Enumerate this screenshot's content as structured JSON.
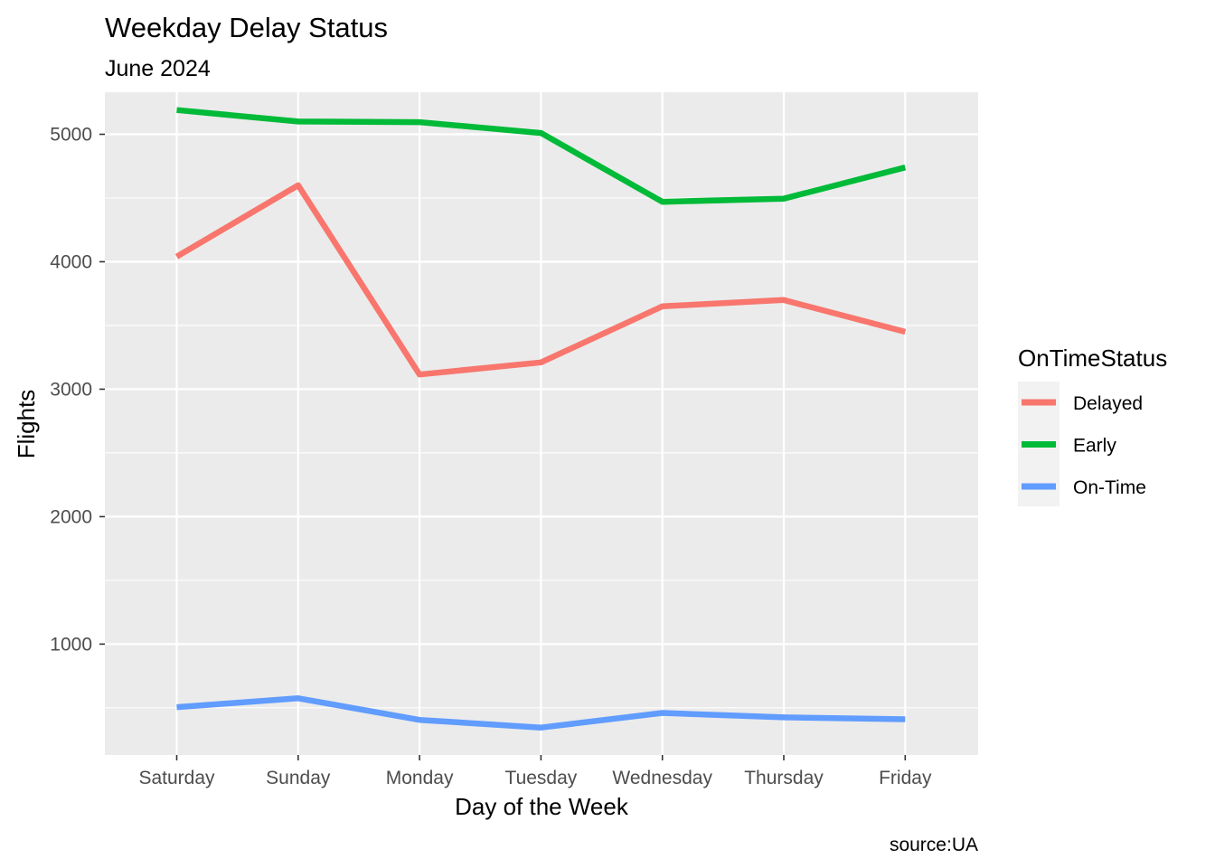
{
  "chart_data": {
    "type": "line",
    "title": "Weekday Delay Status",
    "subtitle": "June 2024",
    "xlabel": "Day of the Week",
    "ylabel": "Flights",
    "caption": "source:UA",
    "categories": [
      "Saturday",
      "Sunday",
      "Monday",
      "Tuesday",
      "Wednesday",
      "Thursday",
      "Friday"
    ],
    "ylim": [
      130,
      5330
    ],
    "yticks": [
      1000,
      2000,
      3000,
      4000,
      5000
    ],
    "grid": true,
    "legend": {
      "title": "OnTimeStatus",
      "position": "right"
    },
    "series": [
      {
        "name": "Delayed",
        "color": "#F8766D",
        "values": [
          4040,
          4600,
          3115,
          3210,
          3650,
          3700,
          3450
        ]
      },
      {
        "name": "Early",
        "color": "#00BA38",
        "values": [
          5190,
          5100,
          5095,
          5010,
          4470,
          4495,
          4740
        ]
      },
      {
        "name": "On-Time",
        "color": "#619CFF",
        "values": [
          505,
          575,
          405,
          345,
          460,
          425,
          410
        ]
      }
    ]
  }
}
